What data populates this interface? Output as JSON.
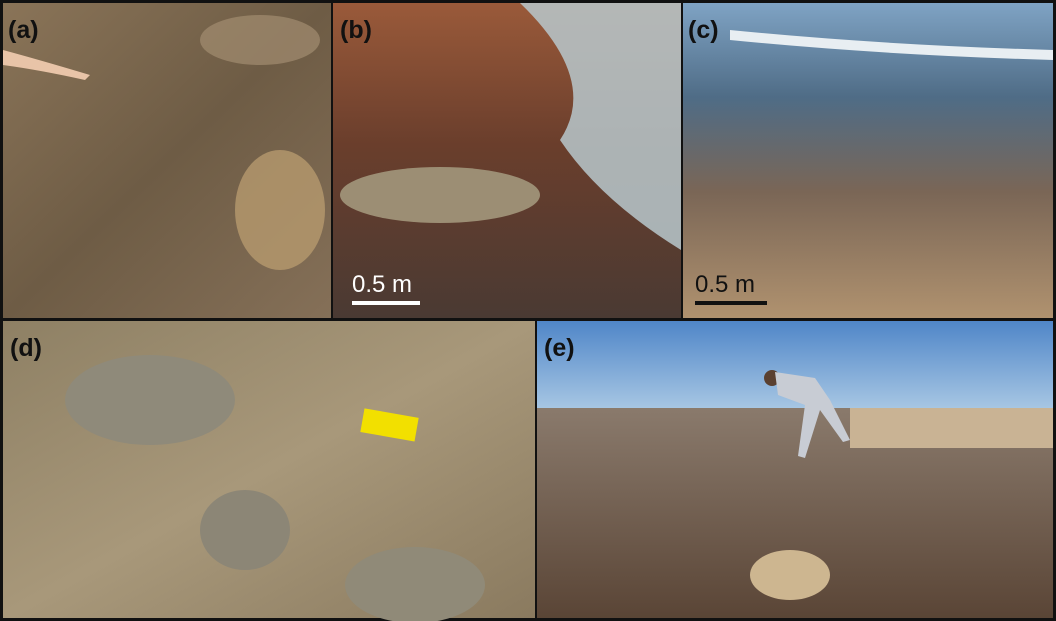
{
  "panels": [
    {
      "label": "(a)"
    },
    {
      "label": "(b)",
      "scale_bar": "0.5 m"
    },
    {
      "label": "(c)",
      "scale_bar": "0.5 m"
    },
    {
      "label": "(d)"
    },
    {
      "label": "(e)"
    }
  ]
}
